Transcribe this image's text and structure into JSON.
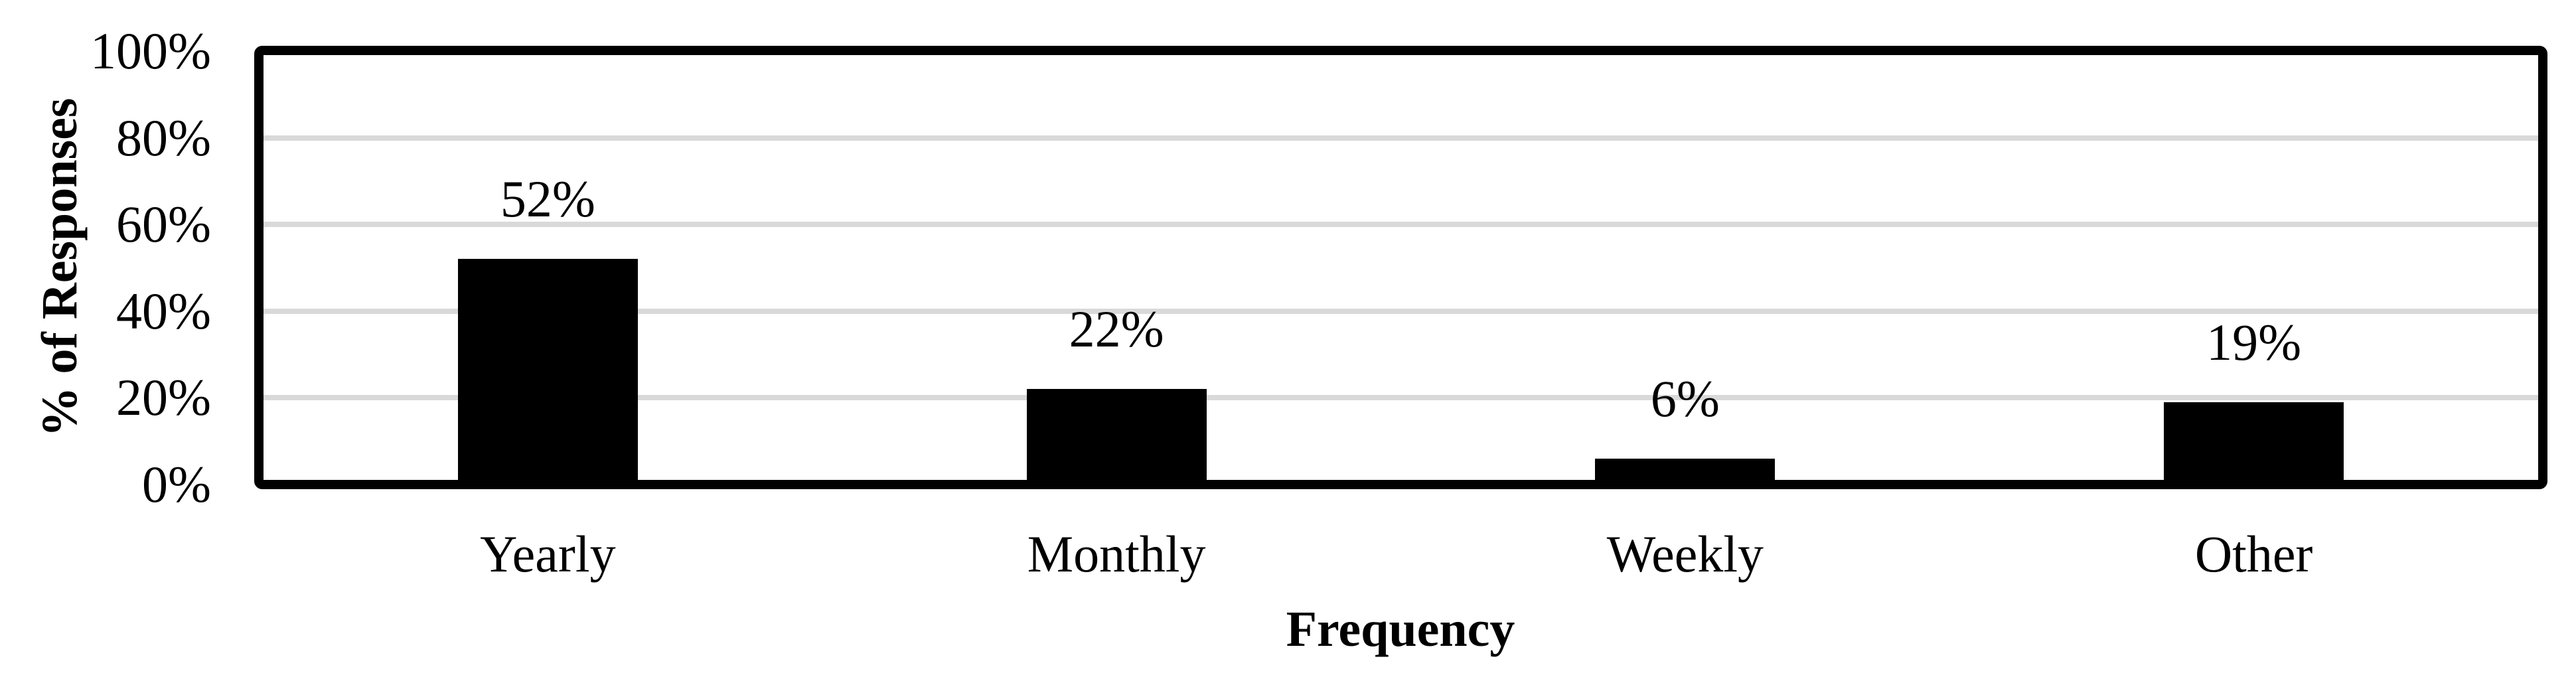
{
  "chart_data": {
    "type": "bar",
    "categories": [
      "Yearly",
      "Monthly",
      "Weekly",
      "Other"
    ],
    "values": [
      52,
      22,
      6,
      19
    ],
    "data_labels": [
      "52%",
      "22%",
      "6%",
      "19%"
    ],
    "title": "",
    "xlabel": "Frequency",
    "ylabel": "% of Responses",
    "ylim": [
      0,
      100
    ],
    "ytick_values": [
      0,
      20,
      40,
      60,
      80,
      100
    ],
    "ytick_labels": [
      "0%",
      "20%",
      "40%",
      "60%",
      "80%",
      "100%"
    ],
    "gridline_values": [
      20,
      40,
      60,
      80
    ],
    "grid": "horizontal",
    "legend": "none",
    "bar_color": "#000000",
    "gridline_color": "#D9D9D9",
    "border_color": "#000000",
    "background_color": "#FFFFFF"
  }
}
